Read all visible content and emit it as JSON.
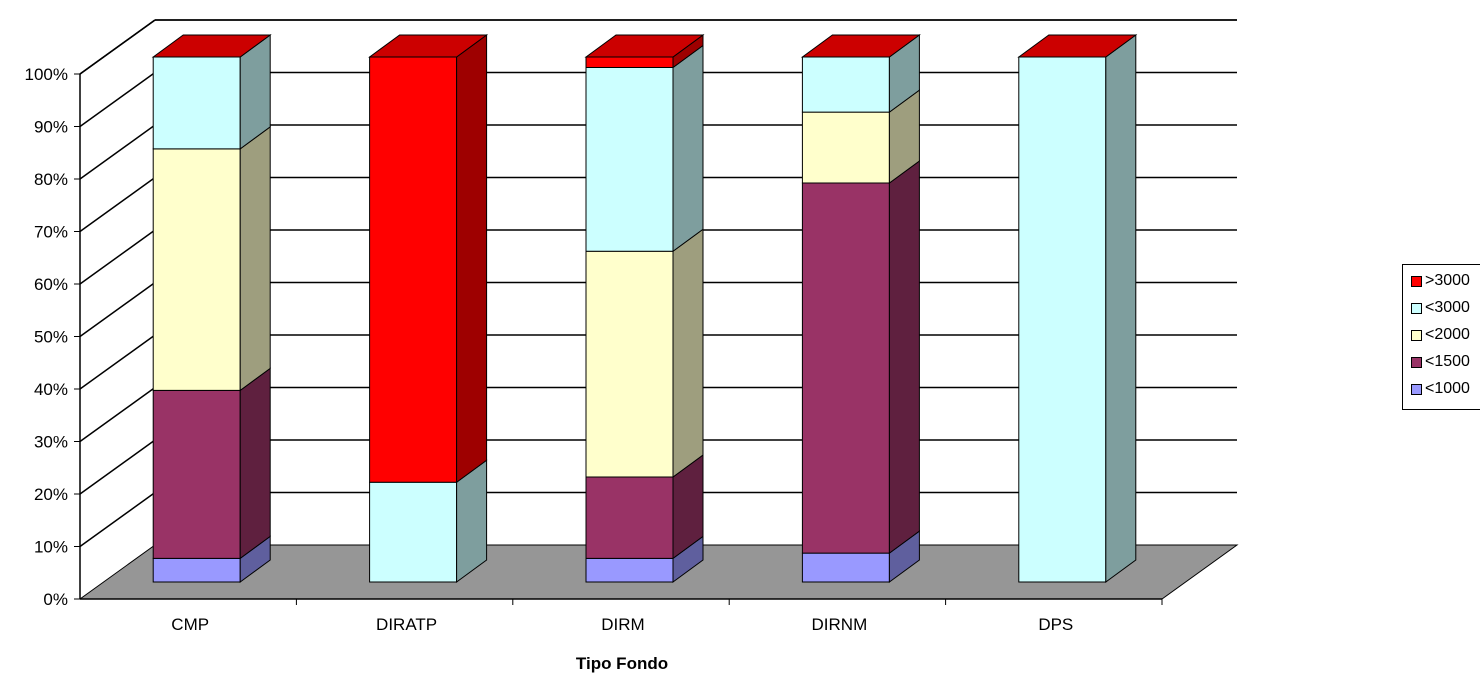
{
  "chart_data": {
    "type": "bar",
    "stacked": "percent",
    "three_d": true,
    "categories": [
      "CMP",
      "DIRATP",
      "DIRM",
      "DIRNM",
      "DPS"
    ],
    "xlabel": "Tipo Fondo",
    "ylabel": "",
    "ylim": [
      0,
      100
    ],
    "yticks": [
      "0%",
      "10%",
      "20%",
      "30%",
      "40%",
      "50%",
      "60%",
      "70%",
      "80%",
      "90%",
      "100%"
    ],
    "grid": true,
    "legend_position": "right",
    "series": [
      {
        "name": "<1000",
        "color": "#9999ff",
        "values": [
          4.5,
          0,
          4.5,
          5.5,
          0
        ]
      },
      {
        "name": "<1500",
        "color": "#993366",
        "values": [
          32,
          0,
          15.5,
          70.5,
          0
        ]
      },
      {
        "name": "<2000",
        "color": "#ffffcc",
        "values": [
          46,
          0,
          43,
          13.5,
          0
        ]
      },
      {
        "name": "<3000",
        "color": "#ccffff",
        "values": [
          17.5,
          19,
          35,
          10.5,
          100
        ]
      },
      {
        "name": ">3000",
        "color": "#ff0000",
        "values": [
          0,
          81,
          2,
          0,
          0
        ]
      }
    ]
  },
  "legend": {
    "items": [
      ">3000",
      "<3000",
      "<2000",
      "<1500",
      "<1000"
    ]
  }
}
